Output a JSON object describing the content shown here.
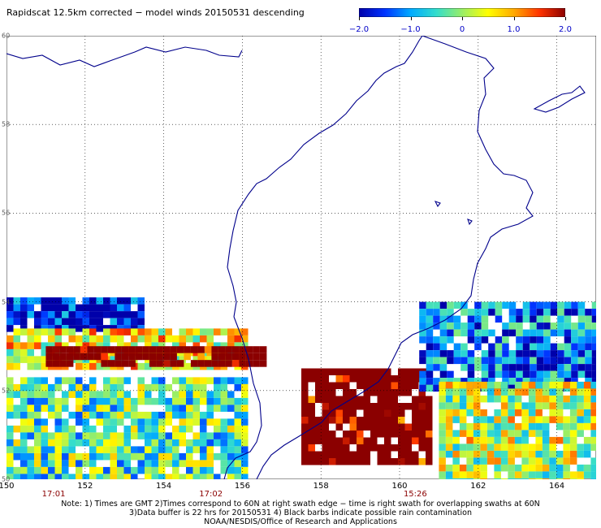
{
  "title": "Rapidscat 12.5km corrected − model winds 20150531 descending",
  "colorbar": {
    "labels": [
      "−2.0",
      "−1.0",
      "0",
      "1.0",
      "2.0"
    ],
    "min": -2.0,
    "max": 2.0,
    "colors": [
      "#0000aa",
      "#0033ff",
      "#00aaff",
      "#33ddcc",
      "#99ee66",
      "#ffff00",
      "#ffaa00",
      "#ff3300",
      "#8b0000"
    ]
  },
  "axes": {
    "lon_labels": [
      "150",
      "152",
      "154",
      "156",
      "158",
      "160",
      "162",
      "164"
    ],
    "lat_labels": [
      "60",
      "58",
      "56",
      "54",
      "52",
      "50"
    ],
    "lon_range": [
      150,
      165
    ],
    "lat_range": [
      50,
      60
    ],
    "grid": true
  },
  "swath_times": [
    {
      "text": "17:01",
      "lon": 151.2
    },
    {
      "text": "17:02",
      "lon": 155.2
    },
    {
      "text": "15:26",
      "lon": 160.4
    }
  ],
  "notes": [
    "Note: 1) Times are GMT 2)Times correspond to 60N at right swath edge − time is right swath for overlapping swaths at 60N",
    "3)Data buffer is 22 hrs for 20150531 4) Black barbs indicate possible rain contamination",
    "NOAA/NESDIS/Office of Research and Applications"
  ],
  "chart_data": {
    "type": "heatmap",
    "variable": "corrected minus model wind speed",
    "value_range": [
      -2.0,
      2.0
    ],
    "x_axis": "longitude",
    "y_axis": "latitude",
    "xlim": [
      150,
      165
    ],
    "ylim": [
      50,
      60
    ],
    "regions": [
      {
        "lon": [
          150.0,
          153.5
        ],
        "lat": [
          53.4,
          54.1
        ],
        "mean": -1.8
      },
      {
        "lon": [
          150.0,
          156.0
        ],
        "lat": [
          52.6,
          53.4
        ],
        "mean": 0.5
      },
      {
        "lon": [
          151.0,
          156.5
        ],
        "lat": [
          52.6,
          53.0
        ],
        "mean": 2.0
      },
      {
        "lon": [
          150.0,
          156.0
        ],
        "lat": [
          50.0,
          52.3
        ],
        "mean": -0.3
      },
      {
        "lon": [
          157.5,
          160.8
        ],
        "lat": [
          50.4,
          52.5
        ],
        "mean": 2.0
      },
      {
        "lon": [
          160.5,
          165.0
        ],
        "lat": [
          52.0,
          54.0
        ],
        "mean": -1.2
      },
      {
        "lon": [
          161.0,
          165.0
        ],
        "lat": [
          50.0,
          52.2
        ],
        "mean": 0.2
      }
    ]
  }
}
